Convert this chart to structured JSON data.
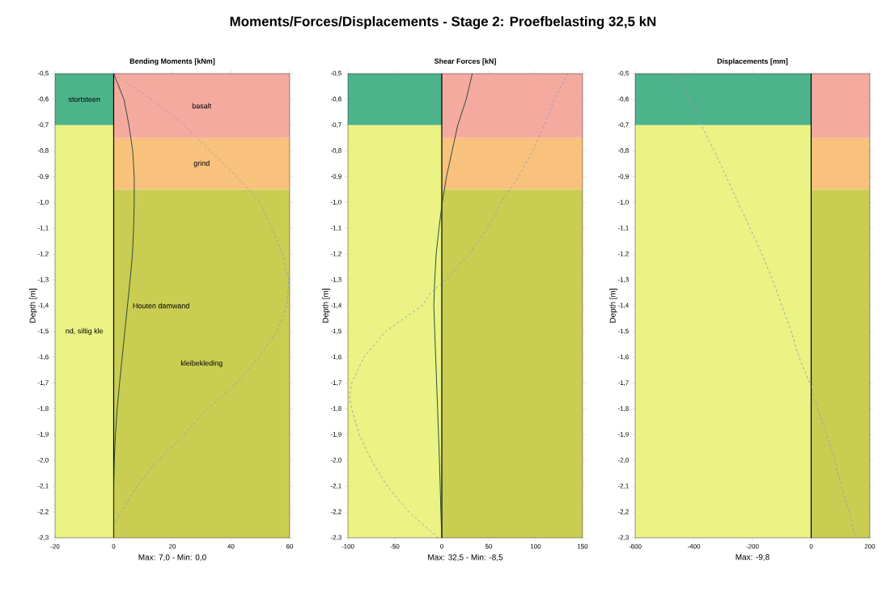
{
  "chart_data": [
    {
      "type": "line",
      "title": "Moments/Forces/Displacements - Stage 2: Proefbelasting 32,5 kN",
      "subtitle": "Bending Moments [kNm]",
      "xlabel": "Max: 7,0 - Min: 0,0",
      "ylabel": "Depth [m]",
      "xlim": [
        -20,
        60
      ],
      "xticks": [
        -20,
        0,
        20,
        40,
        60
      ],
      "ylim": [
        -2.3,
        -0.5
      ],
      "yticks": [
        {
          "value": -0.5,
          "label": "-0,5"
        },
        {
          "value": -0.6,
          "label": "-0,6"
        },
        {
          "value": -0.7,
          "label": "-0,7"
        },
        {
          "value": -0.8,
          "label": "-0,8"
        },
        {
          "value": -0.9,
          "label": "-0,9"
        },
        {
          "value": -1.0,
          "label": "-1,0"
        },
        {
          "value": -1.1,
          "label": "-1,1"
        },
        {
          "value": -1.2,
          "label": "-1,2"
        },
        {
          "value": -1.3,
          "label": "-1,3"
        },
        {
          "value": -1.4,
          "label": "-1,4"
        },
        {
          "value": -1.5,
          "label": "-1,5"
        },
        {
          "value": -1.6,
          "label": "-1,6"
        },
        {
          "value": -1.7,
          "label": "-1,7"
        },
        {
          "value": -1.8,
          "label": "-1,8"
        },
        {
          "value": -1.9,
          "label": "-1,9"
        },
        {
          "value": -2.0,
          "label": "-2,0"
        },
        {
          "value": -2.1,
          "label": "-2,1"
        },
        {
          "value": -2.2,
          "label": "-2,2"
        },
        {
          "value": -2.3,
          "label": "-2,3"
        }
      ],
      "bands": [
        {
          "axis": "y",
          "from": -0.75,
          "to": -0.5,
          "label": "basalt",
          "color": "#f5aaa0"
        },
        {
          "axis": "y",
          "from": -0.95,
          "to": -0.75,
          "label": "grind",
          "color": "#f8c27c"
        },
        {
          "axis": "y",
          "from": -2.3,
          "to": -0.95,
          "label": "kleibekleding",
          "color": "#c9cd52"
        },
        {
          "axis": "y",
          "from": -0.7,
          "to": -0.5,
          "label": "stortsteen",
          "color": "#4db38a"
        },
        {
          "axis": "y",
          "from": -2.3,
          "to": -0.7,
          "label": "nd, siltig kle",
          "color": "#eaf383"
        }
      ],
      "ref_lines": [
        {
          "axis": "x",
          "value": 0,
          "label": "Houten damwand",
          "color": "#000000"
        }
      ],
      "series": [
        {
          "color": "#9a9cb0",
          "line_style": "dashed",
          "x": [
            0,
            13,
            24,
            33,
            42,
            50,
            54,
            57.5,
            59.7,
            59,
            55.7,
            49.4,
            42,
            32,
            24,
            15,
            7.9,
            2.5,
            0
          ],
          "values": [
            -0.5,
            -0.6,
            -0.7,
            -0.8,
            -0.9,
            -1.0,
            -1.1,
            -1.2,
            -1.3,
            -1.4,
            -1.5,
            -1.6,
            -1.7,
            -1.8,
            -1.9,
            -2.0,
            -2.1,
            -2.2,
            -2.25
          ]
        },
        {
          "color": "#1e3d32",
          "line_style": "solid",
          "x": [
            0,
            3.5,
            5.2,
            6.5,
            7.0,
            7.0,
            6.8,
            6.4,
            5.6,
            4.7,
            3.8,
            2.9,
            2.0,
            1.2,
            0.6,
            0.2,
            0,
            0
          ],
          "values": [
            -0.5,
            -0.6,
            -0.7,
            -0.8,
            -0.9,
            -1.0,
            -1.1,
            -1.2,
            -1.3,
            -1.4,
            -1.5,
            -1.6,
            -1.7,
            -1.8,
            -1.9,
            -2.0,
            -2.1,
            -2.3
          ]
        }
      ]
    },
    {
      "type": "line",
      "subtitle": "Shear Forces [kN]",
      "xlabel": "Max: 32,5 - Min: -8,5",
      "ylabel": "Depth [m]",
      "xlim": [
        -100,
        150
      ],
      "xticks": [
        -100,
        -50,
        0,
        50,
        100,
        150
      ],
      "ylim": [
        -2.3,
        -0.5
      ],
      "yticks": [
        {
          "value": -0.5,
          "label": "-0,5"
        },
        {
          "value": -0.6,
          "label": "-0,6"
        },
        {
          "value": -0.7,
          "label": "-0,7"
        },
        {
          "value": -0.8,
          "label": "-0,8"
        },
        {
          "value": -0.9,
          "label": "-0,9"
        },
        {
          "value": -1.0,
          "label": "-1,0"
        },
        {
          "value": -1.1,
          "label": "-1,1"
        },
        {
          "value": -1.2,
          "label": "-1,2"
        },
        {
          "value": -1.3,
          "label": "-1,3"
        },
        {
          "value": -1.4,
          "label": "-1,4"
        },
        {
          "value": -1.5,
          "label": "-1,5"
        },
        {
          "value": -1.6,
          "label": "-1,6"
        },
        {
          "value": -1.7,
          "label": "-1,7"
        },
        {
          "value": -1.8,
          "label": "-1,8"
        },
        {
          "value": -1.9,
          "label": "-1,9"
        },
        {
          "value": -2.0,
          "label": "-2,0"
        },
        {
          "value": -2.1,
          "label": "-2,1"
        },
        {
          "value": -2.2,
          "label": "-2,2"
        },
        {
          "value": -2.3,
          "label": "-2,3"
        }
      ],
      "bands": [
        {
          "axis": "y",
          "from": -0.75,
          "to": -0.5,
          "color": "#f5aaa0"
        },
        {
          "axis": "y",
          "from": -0.95,
          "to": -0.75,
          "color": "#f8c27c"
        },
        {
          "axis": "y",
          "from": -2.3,
          "to": -0.95,
          "color": "#c9cd52"
        },
        {
          "axis": "y",
          "from": -0.7,
          "to": -0.5,
          "color": "#4db38a"
        },
        {
          "axis": "y",
          "from": -2.3,
          "to": -0.7,
          "color": "#eaf383"
        }
      ],
      "ref_lines": [
        {
          "axis": "x",
          "value": 0,
          "color": "#000000"
        }
      ],
      "series": [
        {
          "color": "#9a9cb0",
          "line_style": "dashed",
          "x": [
            134,
            120,
            109,
            97,
            82,
            63,
            49,
            29,
            4,
            -12,
            -21,
            -60,
            -83,
            -96,
            -98,
            -96,
            -88,
            -75,
            -58,
            -35,
            -4
          ],
          "values": [
            -0.5,
            -0.6,
            -0.7,
            -0.8,
            -0.9,
            -1.0,
            -1.1,
            -1.2,
            -1.3,
            -1.35,
            -1.4,
            -1.5,
            -1.6,
            -1.7,
            -1.75,
            -1.8,
            -1.9,
            -2.0,
            -2.1,
            -2.2,
            -2.3
          ]
        },
        {
          "color": "#1e3d32",
          "line_style": "solid",
          "x": [
            32.5,
            26,
            17,
            11,
            5,
            0.5,
            -3,
            -6,
            -7.5,
            -8.5,
            -7.5,
            -6.5,
            -5.5,
            -4.5,
            -3.5,
            -2.5,
            -1.7,
            -1,
            0
          ],
          "values": [
            -0.5,
            -0.6,
            -0.7,
            -0.8,
            -0.9,
            -1.0,
            -1.1,
            -1.2,
            -1.3,
            -1.4,
            -1.5,
            -1.6,
            -1.7,
            -1.8,
            -1.9,
            -2.0,
            -2.1,
            -2.2,
            -2.3
          ]
        }
      ]
    },
    {
      "type": "line",
      "subtitle": "Displacements [mm]",
      "xlabel": "Max: -9,8",
      "ylabel": "Depth [m]",
      "xlim": [
        -600,
        200
      ],
      "xticks": [
        -600,
        -400,
        -200,
        0,
        200
      ],
      "ylim": [
        -2.3,
        -0.5
      ],
      "yticks": [
        {
          "value": -0.5,
          "label": "-0,5"
        },
        {
          "value": -0.6,
          "label": "-0,6"
        },
        {
          "value": -0.7,
          "label": "-0,7"
        },
        {
          "value": -0.8,
          "label": "-0,8"
        },
        {
          "value": -0.9,
          "label": "-0,9"
        },
        {
          "value": -1.0,
          "label": "-1,0"
        },
        {
          "value": -1.1,
          "label": "-1,1"
        },
        {
          "value": -1.2,
          "label": "-1,2"
        },
        {
          "value": -1.3,
          "label": "-1,3"
        },
        {
          "value": -1.4,
          "label": "-1,4"
        },
        {
          "value": -1.5,
          "label": "-1,5"
        },
        {
          "value": -1.6,
          "label": "-1,6"
        },
        {
          "value": -1.7,
          "label": "-1,7"
        },
        {
          "value": -1.8,
          "label": "-1,8"
        },
        {
          "value": -1.9,
          "label": "-1,9"
        },
        {
          "value": -2.0,
          "label": "-2,0"
        },
        {
          "value": -2.1,
          "label": "-2,1"
        },
        {
          "value": -2.2,
          "label": "-2,2"
        },
        {
          "value": -2.3,
          "label": "-2,3"
        }
      ],
      "bands": [
        {
          "axis": "y",
          "from": -0.75,
          "to": -0.5,
          "color": "#f5aaa0"
        },
        {
          "axis": "y",
          "from": -0.95,
          "to": -0.75,
          "color": "#f8c27c"
        },
        {
          "axis": "y",
          "from": -2.3,
          "to": -0.95,
          "color": "#c9cd52"
        },
        {
          "axis": "y",
          "from": -0.7,
          "to": -0.5,
          "color": "#4db38a"
        },
        {
          "axis": "y",
          "from": -2.3,
          "to": -0.7,
          "color": "#eaf383"
        }
      ],
      "ref_lines": [
        {
          "axis": "x",
          "value": 0,
          "color": "#000000"
        }
      ],
      "series": [
        {
          "color": "#9a9cb0",
          "line_style": "dashed",
          "x": [
            -451,
            -416,
            -375,
            -330,
            -289,
            -249,
            -208,
            -168,
            -132,
            -100,
            -68,
            -41,
            -5,
            22,
            54,
            81,
            103,
            130,
            151
          ],
          "values": [
            -0.5,
            -0.6,
            -0.7,
            -0.8,
            -0.9,
            -1.0,
            -1.1,
            -1.2,
            -1.3,
            -1.4,
            -1.5,
            -1.6,
            -1.7,
            -1.8,
            -1.9,
            -2.0,
            -2.1,
            -2.2,
            -2.3
          ]
        }
      ]
    }
  ]
}
